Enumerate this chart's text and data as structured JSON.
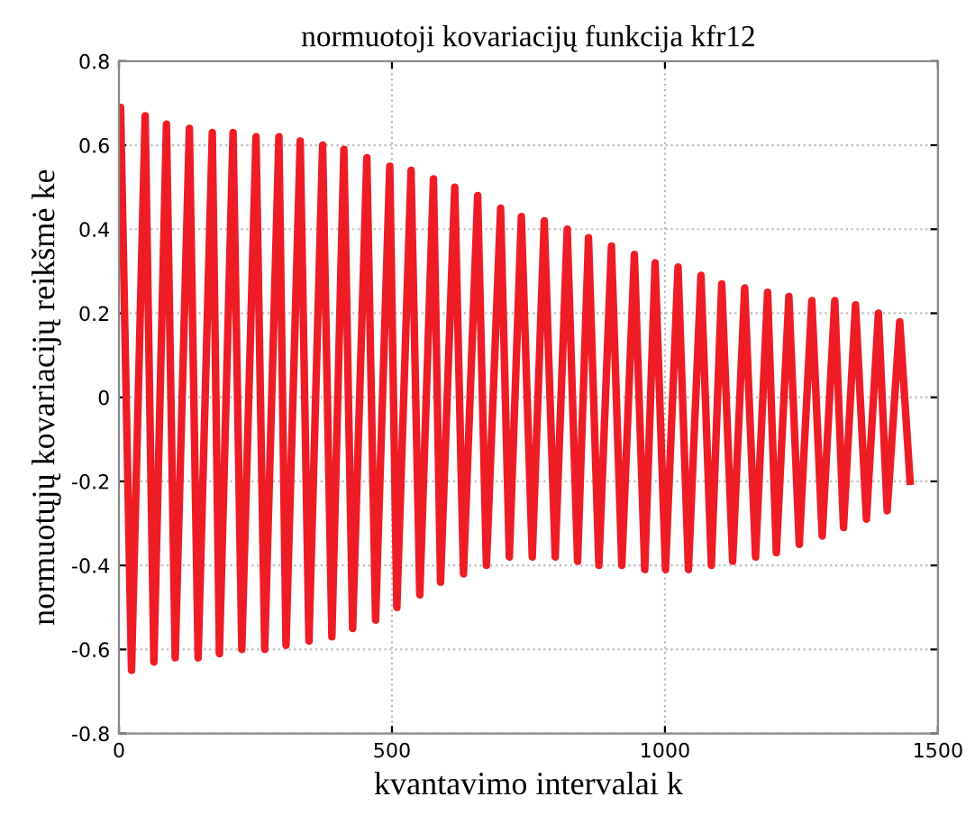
{
  "chart_data": {
    "type": "line",
    "title": "normuotoji kovariacijų funkcija kfr12",
    "xlabel": "kvantavimo intervalai k",
    "ylabel": "normuotųjų kovariacijų reikšmė ke",
    "xlim": [
      0,
      1500
    ],
    "xticks": [
      0,
      500,
      1000,
      1500
    ],
    "ylim": [
      -0.8,
      0.8
    ],
    "yticks": [
      -0.8,
      -0.6,
      -0.4,
      -0.2,
      0,
      0.2,
      0.4,
      0.6,
      0.8
    ],
    "grid": true,
    "line_style": "solid",
    "series": [
      {
        "color": "#ee1c25",
        "x": [
          0,
          3,
          23,
          48,
          64,
          87,
          103,
          129,
          145,
          171,
          184,
          209,
          225,
          251,
          267,
          293,
          306,
          332,
          348,
          373,
          390,
          412,
          428,
          454,
          470,
          496,
          509,
          535,
          551,
          576,
          589,
          615,
          631,
          657,
          673,
          699,
          715,
          737,
          757,
          779,
          799,
          821,
          840,
          860,
          879,
          902,
          921,
          944,
          963,
          982,
          1001,
          1024,
          1043,
          1066,
          1085,
          1104,
          1124,
          1146,
          1166,
          1188,
          1204,
          1227,
          1246,
          1269,
          1288,
          1311,
          1327,
          1349,
          1369,
          1391,
          1407,
          1430,
          1449
        ],
        "values": [
          0.6,
          0.69,
          -0.65,
          0.67,
          -0.63,
          0.65,
          -0.62,
          0.64,
          -0.62,
          0.63,
          -0.61,
          0.63,
          -0.6,
          0.62,
          -0.6,
          0.62,
          -0.59,
          0.61,
          -0.58,
          0.6,
          -0.57,
          0.59,
          -0.55,
          0.57,
          -0.53,
          0.55,
          -0.5,
          0.54,
          -0.47,
          0.52,
          -0.44,
          0.5,
          -0.42,
          0.48,
          -0.4,
          0.45,
          -0.38,
          0.43,
          -0.38,
          0.42,
          -0.38,
          0.4,
          -0.39,
          0.38,
          -0.4,
          0.36,
          -0.4,
          0.34,
          -0.41,
          0.32,
          -0.41,
          0.31,
          -0.41,
          0.29,
          -0.4,
          0.27,
          -0.39,
          0.26,
          -0.38,
          0.25,
          -0.37,
          0.24,
          -0.35,
          0.23,
          -0.33,
          0.23,
          -0.31,
          0.22,
          -0.29,
          0.2,
          -0.27,
          0.18,
          -0.2
        ]
      }
    ]
  }
}
